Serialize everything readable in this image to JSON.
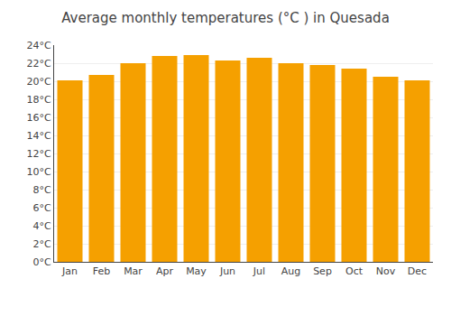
{
  "chart_data": {
    "type": "bar",
    "title": "Average monthly temperatures (°C ) in Quesada",
    "categories": [
      "Jan",
      "Feb",
      "Mar",
      "Apr",
      "May",
      "Jun",
      "Jul",
      "Aug",
      "Sep",
      "Oct",
      "Nov",
      "Dec"
    ],
    "values": [
      20.1,
      20.7,
      22.0,
      22.8,
      22.9,
      22.3,
      22.6,
      22.0,
      21.8,
      21.4,
      20.5,
      20.1
    ],
    "color": "#F5A000",
    "ylim": [
      0,
      24
    ],
    "yticks": [
      {
        "value": 0,
        "label": "0°C"
      },
      {
        "value": 2,
        "label": "2°C"
      },
      {
        "value": 4,
        "label": "4°C"
      },
      {
        "value": 6,
        "label": "6°C"
      },
      {
        "value": 8,
        "label": "8°C"
      },
      {
        "value": 10,
        "label": "10°C"
      },
      {
        "value": 12,
        "label": "12°C"
      },
      {
        "value": 14,
        "label": "14°C"
      },
      {
        "value": 16,
        "label": "16°C"
      },
      {
        "value": 18,
        "label": "18°C"
      },
      {
        "value": 20,
        "label": "20°C"
      },
      {
        "value": 22,
        "label": "22°C"
      },
      {
        "value": 24,
        "label": "24°C"
      }
    ],
    "grid": true
  }
}
